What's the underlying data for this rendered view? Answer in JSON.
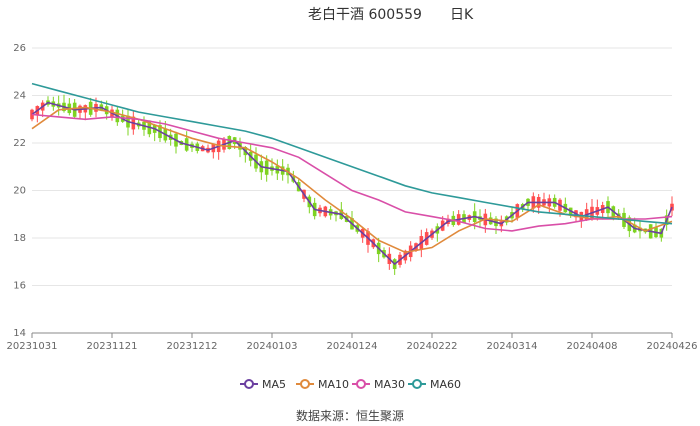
{
  "chart_data": {
    "type": "candlestick",
    "title": "老白干酒 600559",
    "period_label": "日K",
    "x_ticks": [
      "20231031",
      "20231121",
      "20231212",
      "20240103",
      "20240124",
      "20240222",
      "20240314",
      "20240408",
      "20240426"
    ],
    "y_ticks": [
      14,
      16,
      18,
      20,
      22,
      24,
      26
    ],
    "ylim": [
      14,
      26
    ],
    "grid": "horizontal",
    "legend_position": "bottom",
    "colors": {
      "up": "#ff4d4f",
      "down": "#7ed321",
      "ma5": "#6b3fa0",
      "ma10": "#e08a3c",
      "ma30": "#d94fa8",
      "ma60": "#2e9a99"
    },
    "series": [
      {
        "name": "MA5",
        "x": [
          0,
          3,
          8,
          13,
          18,
          23,
          28,
          33,
          38,
          43,
          48,
          53,
          58,
          63,
          68,
          73,
          78,
          83,
          88,
          93,
          98,
          103,
          108,
          113,
          118,
          120
        ],
        "values": [
          23.2,
          23.7,
          23.4,
          23.5,
          22.9,
          22.6,
          22.0,
          21.7,
          22.1,
          21.0,
          20.8,
          19.2,
          19.0,
          18.0,
          16.9,
          17.8,
          18.7,
          18.9,
          18.6,
          19.5,
          19.5,
          18.9,
          19.3,
          18.4,
          18.2,
          19.3
        ]
      },
      {
        "name": "MA10",
        "x": [
          0,
          5,
          10,
          15,
          20,
          25,
          30,
          35,
          40,
          45,
          50,
          55,
          60,
          65,
          70,
          75,
          80,
          85,
          90,
          95,
          100,
          105,
          110,
          115,
          120
        ],
        "values": [
          22.6,
          23.4,
          23.5,
          23.3,
          23.0,
          22.6,
          22.2,
          21.9,
          21.8,
          21.2,
          20.5,
          19.6,
          18.8,
          17.9,
          17.4,
          17.6,
          18.3,
          18.8,
          18.7,
          19.4,
          19.0,
          18.8,
          18.9,
          18.3,
          18.7
        ]
      },
      {
        "name": "MA30",
        "x": [
          0,
          5,
          10,
          15,
          20,
          25,
          30,
          35,
          40,
          45,
          50,
          55,
          60,
          65,
          70,
          75,
          80,
          85,
          90,
          95,
          100,
          105,
          110,
          115,
          120
        ],
        "values": [
          23.2,
          23.1,
          23.0,
          23.1,
          23.0,
          22.8,
          22.5,
          22.2,
          22.0,
          21.8,
          21.4,
          20.7,
          20.0,
          19.6,
          19.1,
          18.9,
          18.7,
          18.4,
          18.3,
          18.5,
          18.6,
          18.8,
          18.8,
          18.8,
          18.9
        ]
      },
      {
        "name": "MA60",
        "x": [
          0,
          5,
          10,
          15,
          20,
          25,
          30,
          35,
          40,
          45,
          50,
          55,
          60,
          65,
          70,
          75,
          80,
          85,
          90,
          95,
          100,
          105,
          110,
          115,
          120
        ],
        "values": [
          24.5,
          24.2,
          23.9,
          23.6,
          23.3,
          23.1,
          22.9,
          22.7,
          22.5,
          22.2,
          21.8,
          21.4,
          21.0,
          20.6,
          20.2,
          19.9,
          19.7,
          19.5,
          19.3,
          19.1,
          19.0,
          18.9,
          18.8,
          18.7,
          18.6
        ]
      }
    ],
    "ohlc_summary": {
      "note_values_hidden": true
    }
  },
  "source_label": "数据来源：恒生聚源"
}
